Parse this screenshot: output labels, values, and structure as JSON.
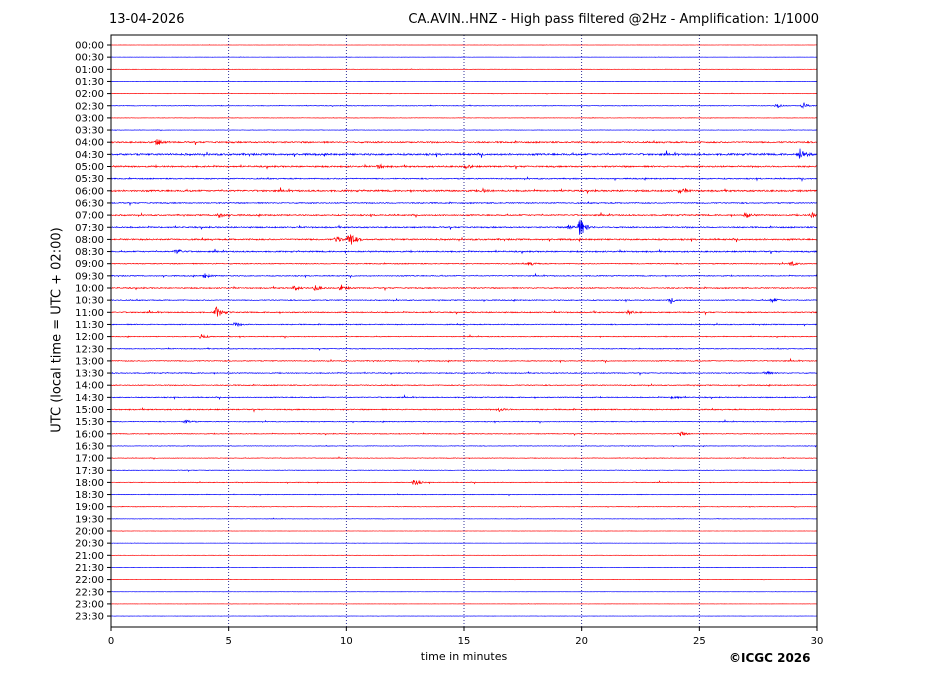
{
  "header": {
    "date": "13-04-2026",
    "title": "CA.AVIN..HNZ - High pass filtered @2Hz - Amplification: 1/1000"
  },
  "footer": {
    "copyright": "©ICGC 2026"
  },
  "colors": {
    "trace_red": "#ff0000",
    "trace_blue": "#0000ff",
    "grid": "#000080"
  },
  "chart_data": {
    "type": "line",
    "chart_kind": "helicorder",
    "xlabel": "time in minutes",
    "ylabel": "UTC (local time = UTC + 02:00)",
    "xlim": [
      0,
      30
    ],
    "x_ticks": [
      0,
      5,
      10,
      15,
      20,
      25,
      30
    ],
    "vertical_gridlines_at": [
      5,
      10,
      15,
      20,
      25
    ],
    "grid": true,
    "row_labels": [
      "00:00",
      "00:30",
      "01:00",
      "01:30",
      "02:00",
      "02:30",
      "03:00",
      "03:30",
      "04:00",
      "04:30",
      "05:00",
      "05:30",
      "06:00",
      "06:30",
      "07:00",
      "07:30",
      "08:00",
      "08:30",
      "09:00",
      "09:30",
      "10:00",
      "10:30",
      "11:00",
      "11:30",
      "12:00",
      "12:30",
      "13:00",
      "13:30",
      "14:00",
      "14:30",
      "15:00",
      "15:30",
      "16:00",
      "16:30",
      "17:00",
      "17:30",
      "18:00",
      "18:30",
      "19:00",
      "19:30",
      "20:00",
      "20:30",
      "21:00",
      "21:30",
      "22:00",
      "22:30",
      "23:00",
      "23:30"
    ],
    "row_colors_cycle": [
      "red",
      "blue"
    ],
    "row_noise_levels": [
      0.1,
      0.1,
      0.12,
      0.12,
      0.15,
      0.3,
      0.2,
      0.2,
      0.8,
      1.0,
      0.8,
      0.6,
      0.9,
      0.6,
      0.7,
      0.7,
      0.8,
      0.7,
      0.5,
      0.5,
      0.6,
      0.5,
      0.6,
      0.5,
      0.4,
      0.4,
      0.5,
      0.5,
      0.5,
      0.5,
      0.6,
      0.4,
      0.4,
      0.3,
      0.3,
      0.3,
      0.35,
      0.3,
      0.25,
      0.2,
      0.12,
      0.1,
      0.1,
      0.1,
      0.1,
      0.1,
      0.1,
      0.1
    ],
    "events": [
      {
        "row": "02:30",
        "minute": 28.3,
        "amplitude": 0.35
      },
      {
        "row": "02:30",
        "minute": 29.4,
        "amplitude": 0.5
      },
      {
        "row": "04:00",
        "minute": 1.95,
        "amplitude": 0.5
      },
      {
        "row": "04:30",
        "minute": 29.3,
        "amplitude": 0.9
      },
      {
        "row": "05:00",
        "minute": 11.4,
        "amplitude": 0.35
      },
      {
        "row": "05:00",
        "minute": 15.1,
        "amplitude": 0.3
      },
      {
        "row": "06:00",
        "minute": 24.2,
        "amplitude": 0.4
      },
      {
        "row": "06:00",
        "minute": 15.8,
        "amplitude": 0.25
      },
      {
        "row": "07:00",
        "minute": 4.6,
        "amplitude": 0.45
      },
      {
        "row": "07:00",
        "minute": 27.0,
        "amplitude": 0.4
      },
      {
        "row": "07:00",
        "minute": 29.8,
        "amplitude": 0.4
      },
      {
        "row": "07:30",
        "minute": 19.95,
        "amplitude": 1.5
      },
      {
        "row": "07:30",
        "minute": 19.5,
        "amplitude": 0.6
      },
      {
        "row": "08:00",
        "minute": 10.15,
        "amplitude": 1.3
      },
      {
        "row": "08:00",
        "minute": 9.6,
        "amplitude": 0.5
      },
      {
        "row": "08:30",
        "minute": 2.8,
        "amplitude": 0.45
      },
      {
        "row": "09:00",
        "minute": 17.8,
        "amplitude": 0.35
      },
      {
        "row": "09:00",
        "minute": 28.9,
        "amplitude": 0.35
      },
      {
        "row": "09:30",
        "minute": 4.0,
        "amplitude": 0.35
      },
      {
        "row": "10:00",
        "minute": 8.7,
        "amplitude": 0.4
      },
      {
        "row": "10:00",
        "minute": 9.8,
        "amplitude": 0.45
      },
      {
        "row": "10:00",
        "minute": 7.8,
        "amplitude": 0.35
      },
      {
        "row": "10:30",
        "minute": 23.8,
        "amplitude": 0.35
      },
      {
        "row": "10:30",
        "minute": 28.1,
        "amplitude": 0.35
      },
      {
        "row": "11:00",
        "minute": 4.5,
        "amplitude": 0.9
      },
      {
        "row": "11:00",
        "minute": 22.0,
        "amplitude": 0.3
      },
      {
        "row": "11:30",
        "minute": 5.3,
        "amplitude": 0.35
      },
      {
        "row": "12:00",
        "minute": 3.8,
        "amplitude": 0.45
      },
      {
        "row": "13:30",
        "minute": 27.8,
        "amplitude": 0.35
      },
      {
        "row": "14:30",
        "minute": 23.9,
        "amplitude": 0.35
      },
      {
        "row": "15:00",
        "minute": 16.5,
        "amplitude": 0.3
      },
      {
        "row": "15:30",
        "minute": 3.2,
        "amplitude": 0.35
      },
      {
        "row": "16:00",
        "minute": 24.2,
        "amplitude": 0.35
      },
      {
        "row": "18:00",
        "minute": 12.9,
        "amplitude": 0.55
      }
    ]
  }
}
